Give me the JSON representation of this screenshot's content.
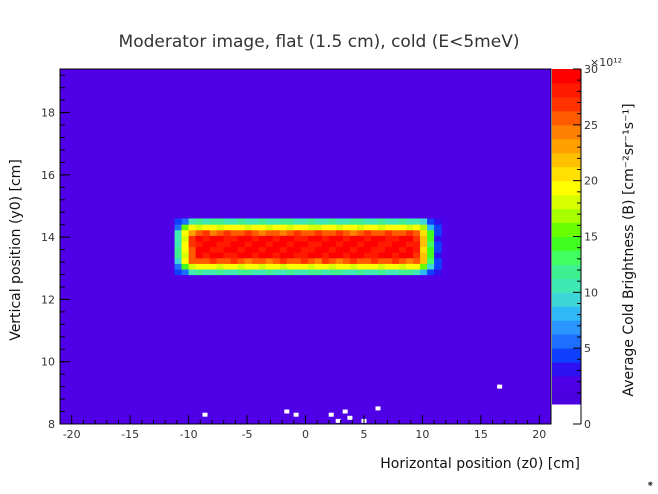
{
  "chart_data": {
    "type": "heatmap",
    "title": "Moderator image, flat (1.5 cm), cold (E<5meV)",
    "xlabel": "Horizontal position (z0) [cm]",
    "ylabel": "Vertical position (y0) [cm]",
    "zlabel": "Average Cold Brightness (B) [cm⁻²sr⁻¹s⁻¹]",
    "zscale_label": "×10¹²",
    "xlim": [
      -21,
      21
    ],
    "ylim": [
      8,
      19.4
    ],
    "zlim": [
      0,
      30
    ],
    "x_ticks": [
      -20,
      -15,
      -10,
      -5,
      0,
      5,
      10,
      15,
      20
    ],
    "y_ticks": [
      8,
      10,
      12,
      14,
      16,
      18
    ],
    "z_ticks": [
      0,
      5,
      10,
      15,
      20,
      25,
      30
    ],
    "background_value": 1.5,
    "hot_region": {
      "z_range": [
        -11.2,
        11.2
      ],
      "y_range": [
        12.8,
        14.6
      ],
      "peak_value": 29,
      "edge_value": 4
    },
    "blank_cells": [
      [
        -8.6,
        8.3
      ],
      [
        -1.6,
        8.4
      ],
      [
        -0.8,
        8.3
      ],
      [
        2.2,
        8.3
      ],
      [
        3.4,
        8.4
      ],
      [
        3.8,
        8.2
      ],
      [
        5.0,
        8.1
      ],
      [
        6.2,
        8.5
      ],
      [
        16.6,
        9.2
      ],
      [
        2.8,
        8.1
      ]
    ],
    "palette": [
      "#4B00E0",
      "#5000E6",
      "#2E10F0",
      "#1040FF",
      "#1E6EFF",
      "#2A94FF",
      "#2EB8F5",
      "#3ED6D8",
      "#40E8B4",
      "#3FF090",
      "#40FF60",
      "#40FF20",
      "#6AFF00",
      "#A8FF00",
      "#D8FF00",
      "#FFFF00",
      "#FFE000",
      "#FFC000",
      "#FFA000",
      "#FF8000",
      "#FF5A00",
      "#FF3200",
      "#FF1A00",
      "#FF0000"
    ]
  },
  "footer_mark": "⁕"
}
